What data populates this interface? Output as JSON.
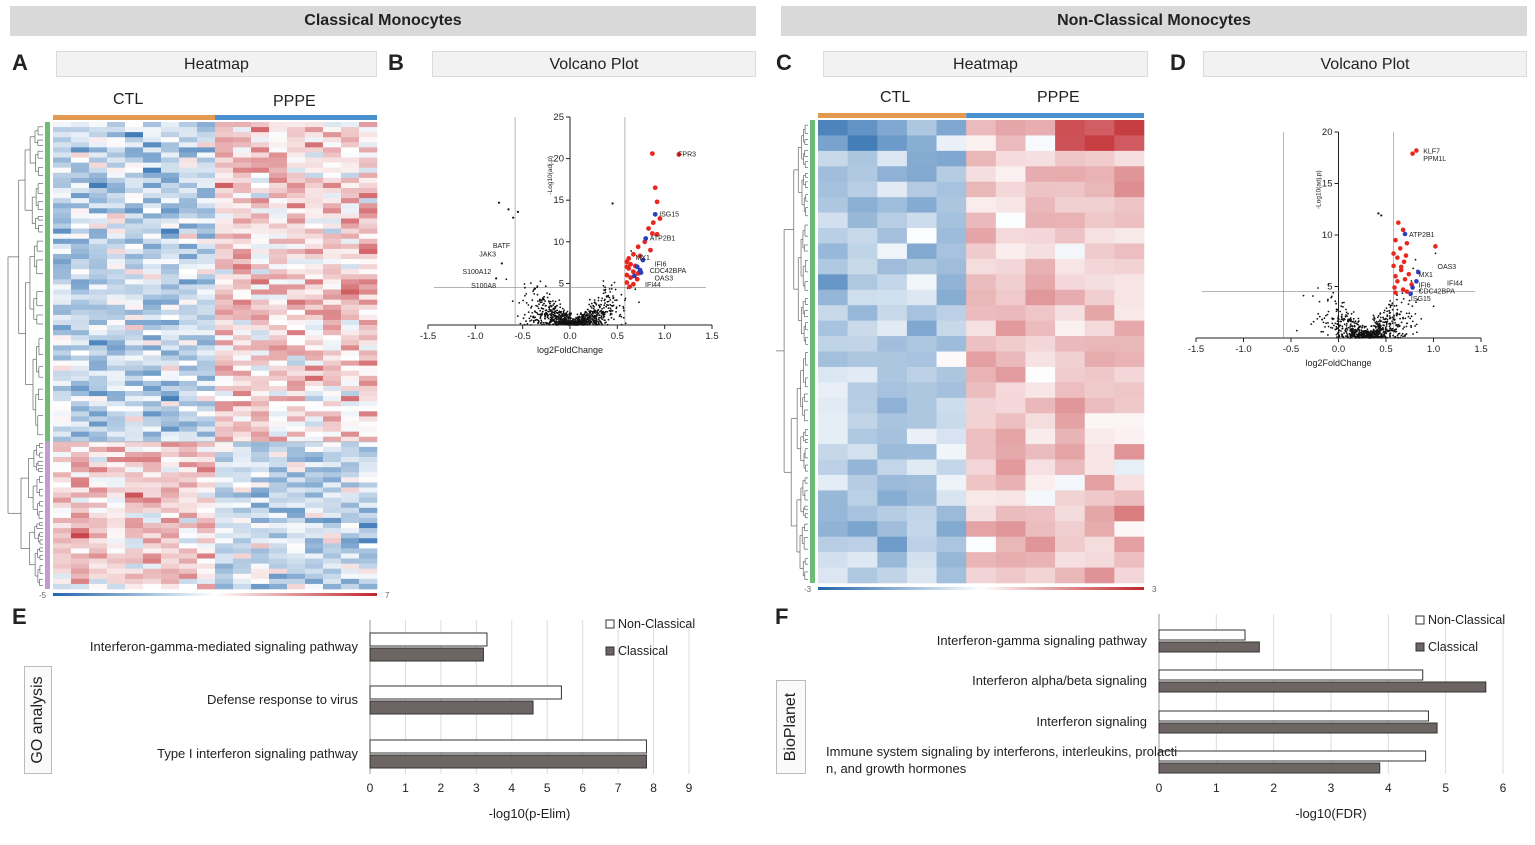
{
  "sections": {
    "left_title": "Classical Monocytes",
    "right_title": "Non-Classical Monocytes"
  },
  "panels": {
    "A": {
      "letter": "A",
      "title": "Heatmap"
    },
    "B": {
      "letter": "B",
      "title": "Volcano Plot"
    },
    "C": {
      "letter": "C",
      "title": "Heatmap"
    },
    "D": {
      "letter": "D",
      "title": "Volcano Plot"
    },
    "E": {
      "letter": "E",
      "side_label": "GO analysis"
    },
    "F": {
      "letter": "F",
      "side_label": "BioPlanet"
    }
  },
  "colors": {
    "ctl": "#e39a4e",
    "pppe": "#4a90cf",
    "cluster1": "#6dbb74",
    "cluster2": "#c49ad3",
    "heat_low": "#2166ac",
    "heat_high": "#c0272d",
    "volcano_red": "#e8281e",
    "volcano_blue": "#2d3fb8",
    "bar_dark": "#6d6464"
  },
  "chart_data": [
    {
      "id": "A",
      "type": "heatmap",
      "column_groups": [
        "CTL",
        "PPPE"
      ],
      "row_clusters": 2,
      "scale_min": "-5",
      "scale_max": "7"
    },
    {
      "id": "B",
      "type": "scatter",
      "xlabel": "log2FoldChange",
      "ylabel": "-Log10(adj.p)",
      "xlim": [
        -1.5,
        1.5
      ],
      "ylim": [
        0,
        25
      ],
      "xticks": [
        "-1.5",
        "-1.0",
        "-0.5",
        "0.0",
        "0.5",
        "1.0",
        "1.5"
      ],
      "yticks": [
        "5",
        "10",
        "15",
        "20",
        "25"
      ],
      "fc_threshold": 0.58,
      "p_threshold": 4.5,
      "labels": [
        {
          "text": "FPR3",
          "x": 1.1,
          "y": 20.6
        },
        {
          "text": "ISG15",
          "x": 0.9,
          "y": 13.4
        },
        {
          "text": "ATP2B1",
          "x": 0.8,
          "y": 10.5
        },
        {
          "text": "MX1",
          "x": 0.65,
          "y": 8.2
        },
        {
          "text": "IFI6",
          "x": 0.85,
          "y": 7.4
        },
        {
          "text": "CDC42BPA",
          "x": 0.8,
          "y": 6.6
        },
        {
          "text": "OAS3",
          "x": 0.85,
          "y": 5.7
        },
        {
          "text": "IFI44",
          "x": 0.75,
          "y": 4.9
        },
        {
          "text": "BATF",
          "x": -0.6,
          "y": 9.6
        },
        {
          "text": "JAK3",
          "x": -0.75,
          "y": 8.6
        },
        {
          "text": "S100A12",
          "x": -0.8,
          "y": 6.5
        },
        {
          "text": "S100A8",
          "x": -0.75,
          "y": 4.8
        }
      ],
      "red_points": [
        [
          0.87,
          20.6
        ],
        [
          1.15,
          20.5
        ],
        [
          0.9,
          16.5
        ],
        [
          0.92,
          14.8
        ],
        [
          0.95,
          12.8
        ],
        [
          0.88,
          12.3
        ],
        [
          0.83,
          11.6
        ],
        [
          0.87,
          11.0
        ],
        [
          0.92,
          10.9
        ],
        [
          0.79,
          10.0
        ],
        [
          0.72,
          9.4
        ],
        [
          0.85,
          9.0
        ],
        [
          0.67,
          8.5
        ],
        [
          0.62,
          8.0
        ],
        [
          0.6,
          7.6
        ],
        [
          0.64,
          7.3
        ],
        [
          0.69,
          7.1
        ],
        [
          0.62,
          6.8
        ],
        [
          0.67,
          6.4
        ],
        [
          0.6,
          6.0
        ],
        [
          0.64,
          5.7
        ],
        [
          0.71,
          5.5
        ],
        [
          0.6,
          5.1
        ],
        [
          0.67,
          4.9
        ],
        [
          0.63,
          4.6
        ],
        [
          0.72,
          6.2
        ],
        [
          0.6,
          7.0
        ],
        [
          0.74,
          8.3
        ]
      ],
      "blue_points": [
        [
          0.9,
          13.3
        ],
        [
          0.8,
          10.4
        ],
        [
          0.77,
          7.8
        ],
        [
          0.71,
          7.0
        ],
        [
          0.74,
          6.6
        ],
        [
          0.68,
          5.9
        ],
        [
          0.75,
          6.3
        ]
      ],
      "black_outliers": [
        [
          -0.75,
          14.7
        ],
        [
          -0.65,
          13.9
        ],
        [
          -0.6,
          12.9
        ],
        [
          -0.55,
          13.6
        ],
        [
          0.45,
          14.6
        ],
        [
          -0.72,
          7.4
        ],
        [
          -0.78,
          5.6
        ]
      ]
    },
    {
      "id": "C",
      "type": "heatmap",
      "column_groups": [
        "CTL",
        "PPPE"
      ],
      "row_clusters": 1,
      "scale_min": "-3",
      "scale_max": "3"
    },
    {
      "id": "D",
      "type": "scatter",
      "xlabel": "log2FoldChange",
      "ylabel": "-Log10(adj.p)",
      "xlim": [
        -1.5,
        1.5
      ],
      "ylim": [
        0,
        20
      ],
      "xticks": [
        "-1.5",
        "-1.0",
        "-0.5",
        "0.0",
        "0.5",
        "1.0",
        "1.5"
      ],
      "yticks": [
        "5",
        "10",
        "15",
        "20"
      ],
      "fc_threshold": 0.58,
      "p_threshold": 4.5,
      "labels": [
        {
          "text": "KLF7",
          "x": 0.85,
          "y": 18.2
        },
        {
          "text": "PPM1L",
          "x": 0.85,
          "y": 17.5
        },
        {
          "text": "ATP2B1",
          "x": 0.7,
          "y": 10.1
        },
        {
          "text": "OAS3",
          "x": 1.0,
          "y": 7.0
        },
        {
          "text": "MX1",
          "x": 0.8,
          "y": 6.2
        },
        {
          "text": "IFI44",
          "x": 1.1,
          "y": 5.4
        },
        {
          "text": "IFI6",
          "x": 0.8,
          "y": 5.2
        },
        {
          "text": "CDC42BPA",
          "x": 0.8,
          "y": 4.6
        },
        {
          "text": "ISG15",
          "x": 0.72,
          "y": 3.9
        }
      ],
      "red_points": [
        [
          0.82,
          18.2
        ],
        [
          0.78,
          17.9
        ],
        [
          0.63,
          11.2
        ],
        [
          0.68,
          10.5
        ],
        [
          0.6,
          9.5
        ],
        [
          0.72,
          9.2
        ],
        [
          0.65,
          8.7
        ],
        [
          1.02,
          8.9
        ],
        [
          0.58,
          8.2
        ],
        [
          0.62,
          7.8
        ],
        [
          0.69,
          7.4
        ],
        [
          0.58,
          7.0
        ],
        [
          0.66,
          6.6
        ],
        [
          0.74,
          6.2
        ],
        [
          0.6,
          6.0
        ],
        [
          0.7,
          5.7
        ],
        [
          0.62,
          5.5
        ],
        [
          0.77,
          5.2
        ],
        [
          0.59,
          4.9
        ],
        [
          0.68,
          4.7
        ],
        [
          0.72,
          4.5
        ],
        [
          0.6,
          4.4
        ],
        [
          0.66,
          6.9
        ],
        [
          0.71,
          8.0
        ]
      ],
      "blue_points": [
        [
          0.7,
          10.1
        ],
        [
          0.84,
          6.4
        ],
        [
          0.82,
          5.5
        ],
        [
          0.78,
          4.9
        ],
        [
          0.76,
          4.3
        ]
      ],
      "black_outliers": [
        [
          0.45,
          11.9
        ],
        [
          0.42,
          12.1
        ]
      ]
    },
    {
      "id": "E",
      "type": "bar",
      "orientation": "horizontal",
      "categories": [
        "Interferon-gamma-mediated signaling pathway",
        "Defense response to virus",
        "Type I interferon signaling pathway"
      ],
      "series": [
        {
          "name": "Non-Classical",
          "values": [
            3.3,
            5.4,
            7.8
          ]
        },
        {
          "name": "Classical",
          "values": [
            3.2,
            4.6,
            7.8
          ]
        }
      ],
      "xlabel": "-log10(p-Elim)",
      "xlim": [
        0,
        9
      ],
      "xticks": [
        "0",
        "1",
        "2",
        "3",
        "4",
        "5",
        "6",
        "7",
        "8",
        "9"
      ]
    },
    {
      "id": "F",
      "type": "bar",
      "orientation": "horizontal",
      "categories": [
        "Interferon-gamma signaling pathway",
        "Interferon alpha/beta signaling",
        "Interferon signaling",
        "Immune system signaling by interferons, interleukins, prolactin, and growth hormones"
      ],
      "series": [
        {
          "name": "Non-Classical",
          "values": [
            1.5,
            4.6,
            4.7,
            4.65
          ]
        },
        {
          "name": "Classical",
          "values": [
            1.75,
            5.7,
            4.85,
            3.85
          ]
        }
      ],
      "xlabel": "-log10(FDR)",
      "xlim": [
        0,
        6
      ],
      "xticks": [
        "0",
        "1",
        "2",
        "3",
        "4",
        "5",
        "6"
      ]
    }
  ]
}
